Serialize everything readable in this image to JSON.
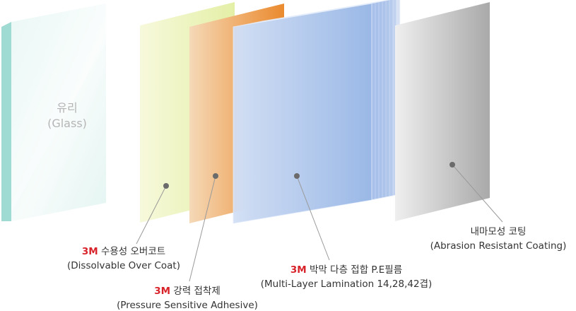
{
  "glass": {
    "title": "유리",
    "subtitle": "(Glass)"
  },
  "labels": {
    "overcoat": {
      "brand": "3M",
      "ko": "수용성 오버코트",
      "en": "(Dissolvable Over Coat)"
    },
    "adhesive": {
      "brand": "3M",
      "ko": "강력 접착제",
      "en": "(Pressure Sensitive Adhesive)"
    },
    "film": {
      "brand": "3M",
      "ko": "박막 다층 접합 P.E필름",
      "en": "(Multi-Layer Lamination 14,28,42겹)"
    },
    "coating": {
      "ko": "내마모성 코팅",
      "en": "(Abrasion Resistant Coating)"
    }
  },
  "colors": {
    "brand": "#d8232a",
    "glass": "#cfeeea",
    "overcoat": "#eef3c2",
    "adhesive": "#ec9a4e",
    "film": "#aec6ec",
    "coating": "#bfbfbf"
  }
}
